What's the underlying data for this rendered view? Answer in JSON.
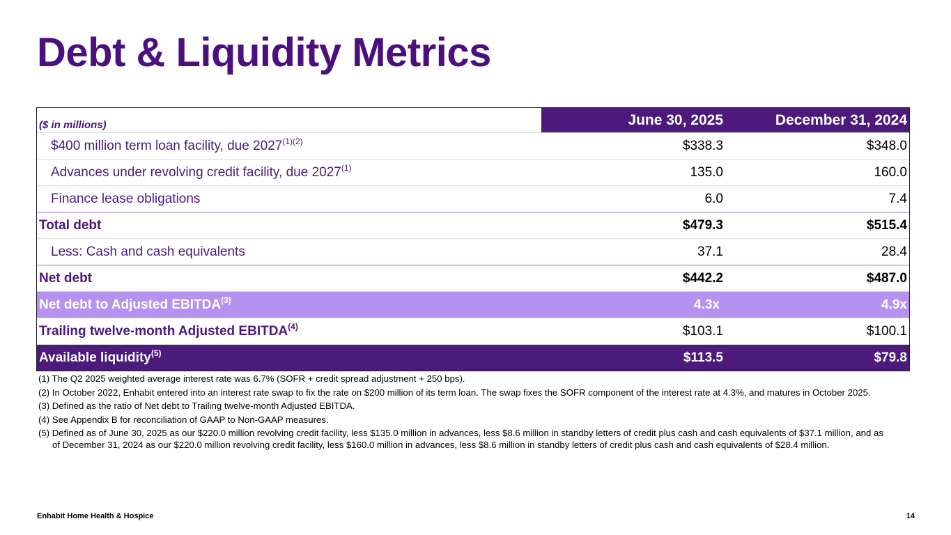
{
  "title": "Debt & Liquidity Metrics",
  "table": {
    "unit_label": "($ in millions)",
    "col1_header": "June 30, 2025",
    "col2_header": "December 31, 2024",
    "rows": [
      {
        "label": "$400 million term loan facility, due 2027",
        "sup": "(1)(2)",
        "v1": "$338.3",
        "v2": "$348.0"
      },
      {
        "label": "Advances under revolving credit facility, due 2027",
        "sup": "(1)",
        "v1": "135.0",
        "v2": "160.0"
      },
      {
        "label": "Finance lease obligations",
        "sup": "",
        "v1": "6.0",
        "v2": "7.4"
      },
      {
        "label": "Total debt",
        "sup": "",
        "v1": "$479.3",
        "v2": "$515.4"
      },
      {
        "label": "Less: Cash and cash equivalents",
        "sup": "",
        "v1": "37.1",
        "v2": "28.4"
      },
      {
        "label": "Net debt",
        "sup": "",
        "v1": "$442.2",
        "v2": "$487.0"
      },
      {
        "label": "Net debt to Adjusted EBITDA",
        "sup": "(3)",
        "v1": "4.3x",
        "v2": "4.9x"
      },
      {
        "label": "Trailing twelve-month Adjusted EBITDA",
        "sup": "(4)",
        "v1": "$103.1",
        "v2": "$100.1"
      },
      {
        "label": "Available liquidity",
        "sup": "(5)",
        "v1": "$113.5",
        "v2": "$79.8"
      }
    ]
  },
  "notes": [
    "(1) The Q2 2025 weighted average interest rate was 6.7% (SOFR + credit spread adjustment + 250 bps).",
    "(2) In October 2022, Enhabit entered into an interest rate swap to fix the rate on $200 million of its term loan. The swap fixes the SOFR component of the interest rate at 4.3%, and matures in October 2025.",
    "(3) Defined as the ratio of Net debt to Trailing twelve-month Adjusted EBITDA.",
    "(4) See Appendix B for reconciliation of GAAP to Non-GAAP measures.",
    "(5) Defined as of June 30, 2025 as our $220.0 million revolving credit facility, less $135.0 million in advances, less $8.6 million in standby letters of credit plus cash and cash equivalents of $37.1 million, and as of December 31, 2024 as our $220.0 million revolving credit facility, less $160.0 million in advances, less $8.6 million in standby letters of credit plus cash and cash equivalents of $28.4 million."
  ],
  "footer": {
    "company": "Enhabit Home Health & Hospice",
    "page_number": "14"
  },
  "colors": {
    "brand_purple": "#4b1a7a",
    "title_purple": "#4b0f7e",
    "lilac": "#b592f0"
  }
}
